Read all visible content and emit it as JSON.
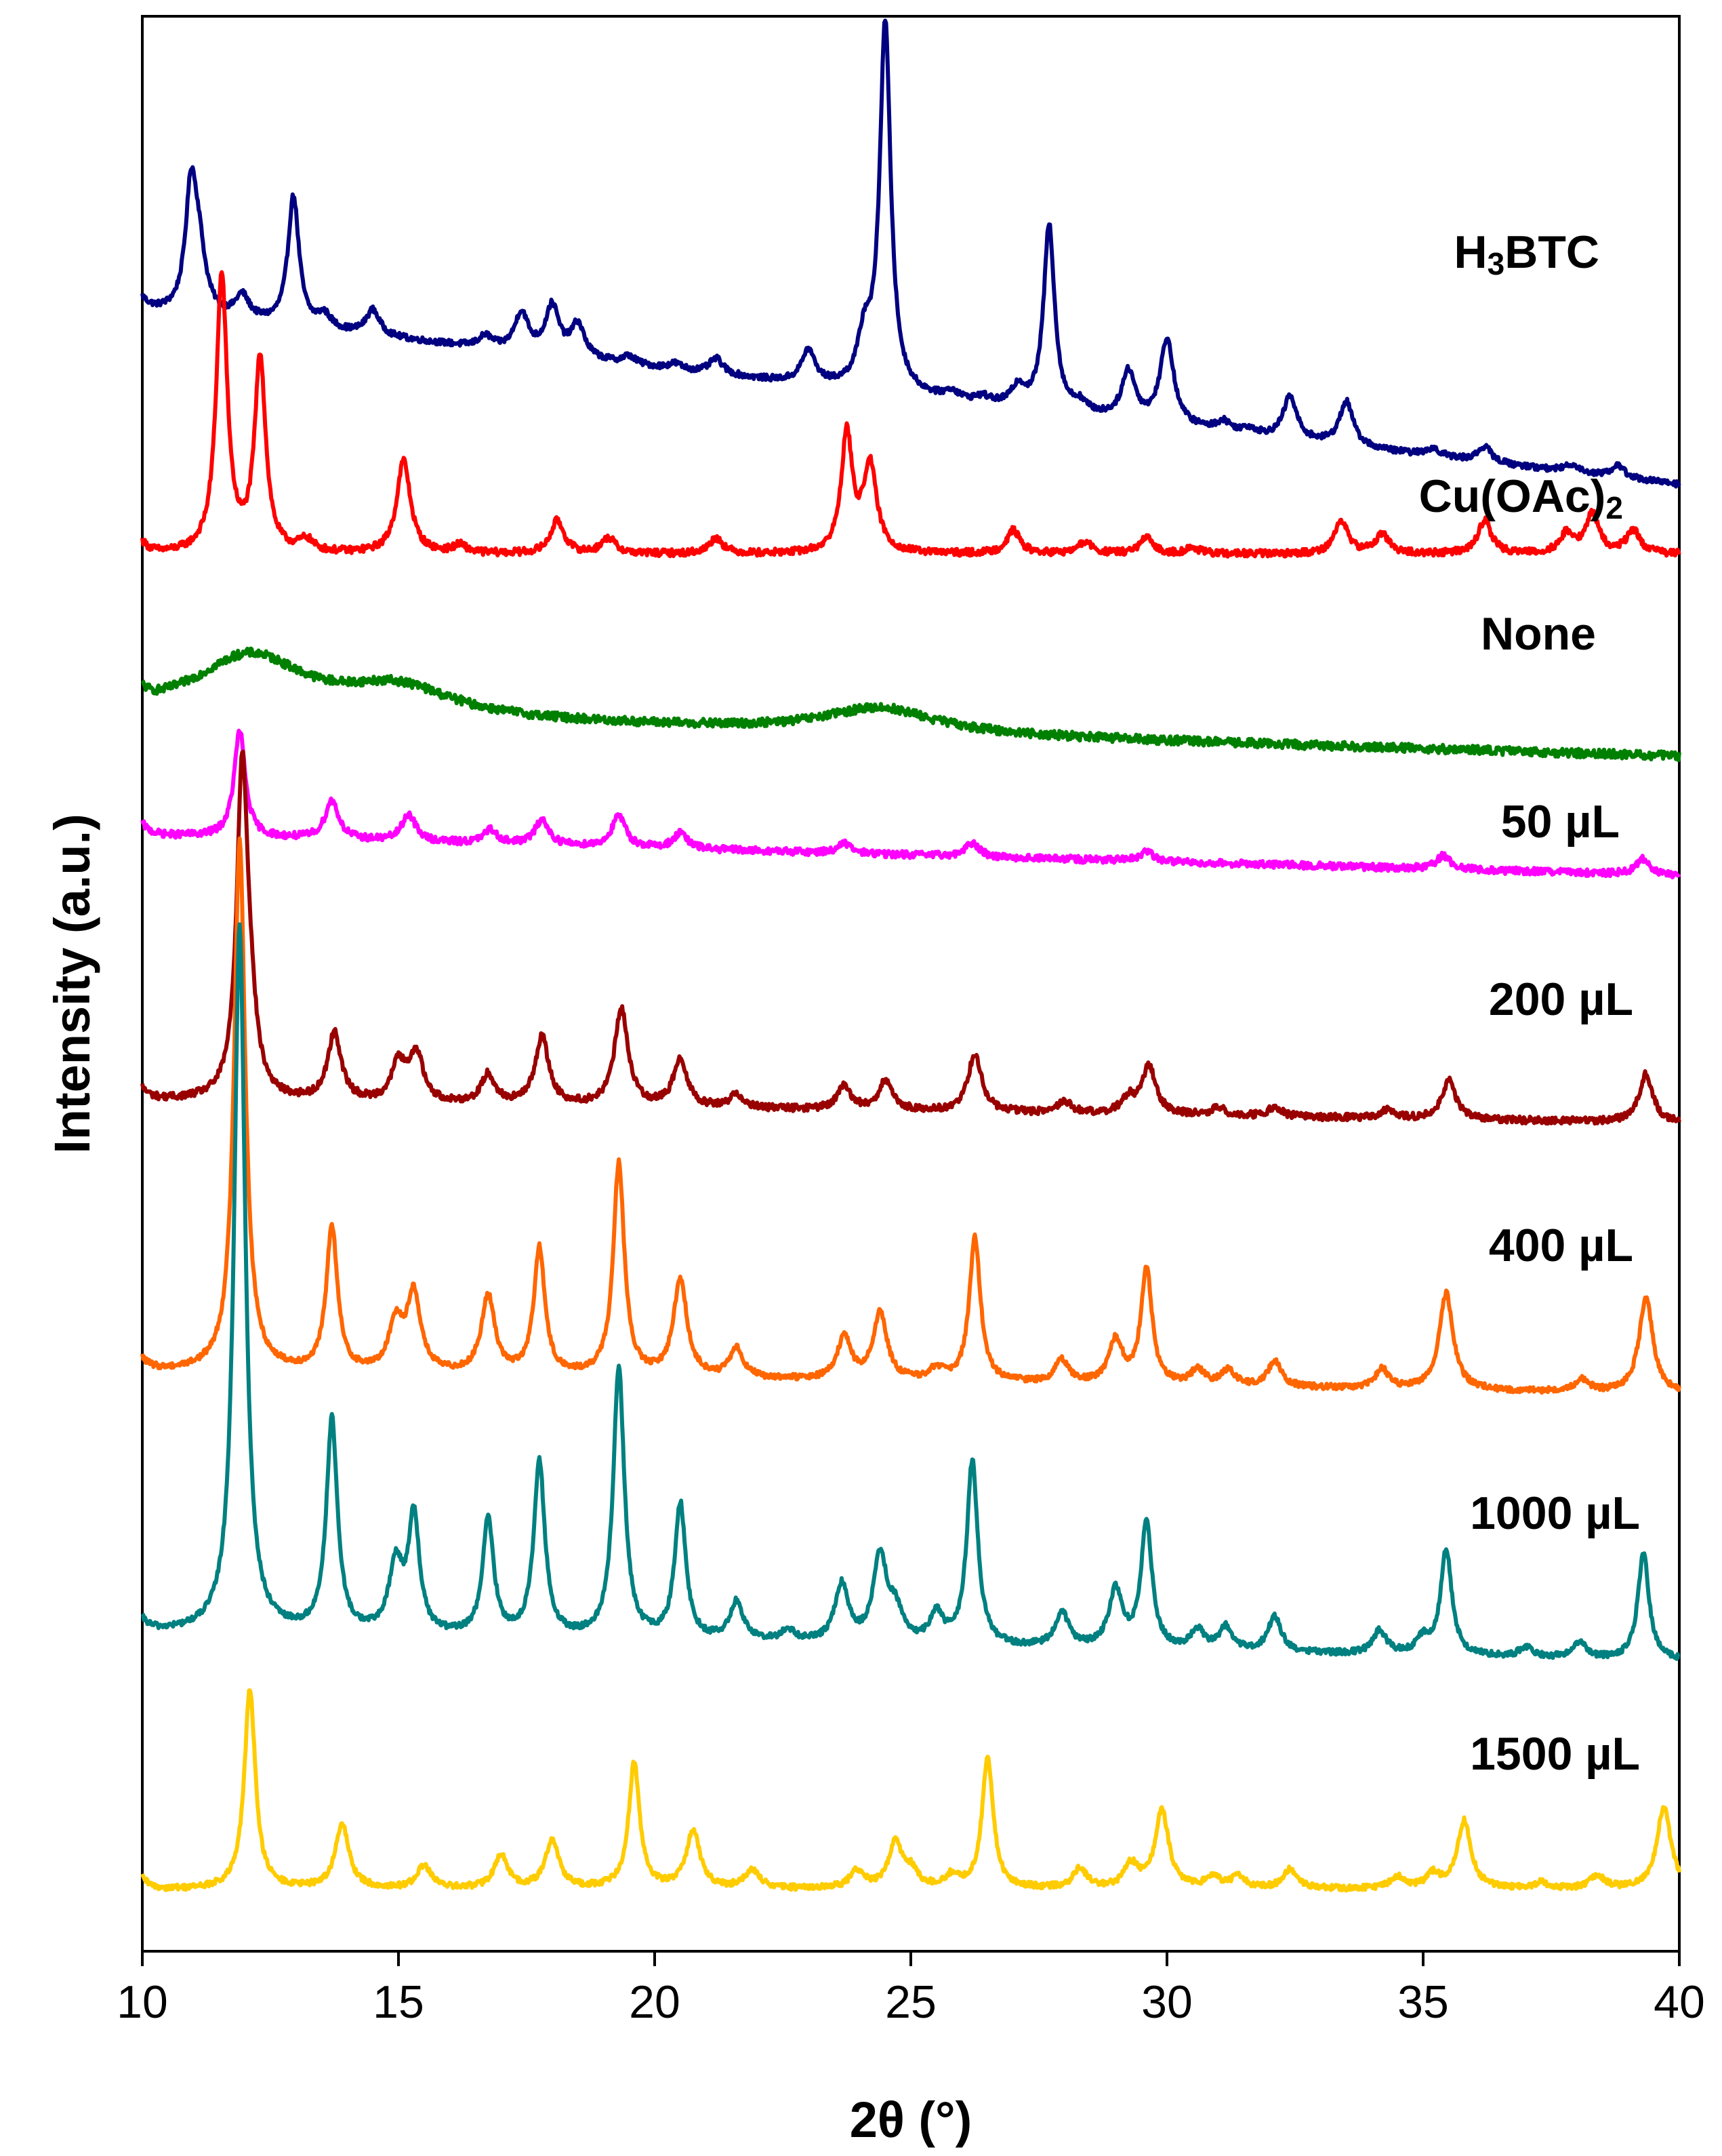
{
  "chart_data": {
    "type": "line",
    "title": "",
    "xlabel": "2θ (°)",
    "ylabel": "Intensity (a.u.)",
    "xlim": [
      10,
      40
    ],
    "xticks": [
      "10",
      "15",
      "20",
      "25",
      "30",
      "35",
      "40"
    ],
    "yticks_shown": false,
    "offset_stacked": true,
    "series": [
      {
        "name": "H3BTC",
        "label_main": "H",
        "label_sub": "3",
        "label_rest": "BTC",
        "color": "#000080",
        "baseline": 0.848,
        "slope": -0.003,
        "noise": 0.0015,
        "peaks": [
          [
            10.95,
            0.06
          ],
          [
            11.1,
            0.03
          ],
          [
            11.95,
            0.012
          ],
          [
            12.95,
            0.067
          ],
          [
            13.55,
            0.007
          ],
          [
            14.5,
            0.013
          ],
          [
            16.7,
            0.006
          ],
          [
            17.4,
            0.02
          ],
          [
            18.0,
            0.025
          ],
          [
            18.5,
            0.017
          ],
          [
            19.5,
            0.004
          ],
          [
            20.4,
            0.003
          ],
          [
            21.2,
            0.008
          ],
          [
            23.0,
            0.017
          ],
          [
            24.1,
            0.025
          ],
          [
            24.5,
            0.19
          ],
          [
            25.8,
            0.004
          ],
          [
            26.4,
            0.003
          ],
          [
            27.1,
            0.01
          ],
          [
            27.7,
            0.096
          ],
          [
            28.3,
            0.005
          ],
          [
            29.25,
            0.025
          ],
          [
            30.0,
            0.044
          ],
          [
            31.1,
            0.005
          ],
          [
            31.6,
            0.003
          ],
          [
            32.4,
            0.022
          ],
          [
            33.5,
            0.023
          ],
          [
            35.2,
            0.004
          ],
          [
            36.2,
            0.008
          ],
          [
            37.9,
            0.004
          ],
          [
            38.8,
            0.006
          ]
        ]
      },
      {
        "name": "Cu(OAc)2",
        "label_main": "Cu(OAc)",
        "label_sub": "2",
        "label_rest": "",
        "color": "#ff0000",
        "baseline": 0.722,
        "slope": 0.0,
        "noise": 0.0018,
        "peaks": [
          [
            11.55,
            0.143
          ],
          [
            12.3,
            0.1
          ],
          [
            13.2,
            0.006
          ],
          [
            15.1,
            0.048
          ],
          [
            16.2,
            0.004
          ],
          [
            18.1,
            0.017
          ],
          [
            19.1,
            0.008
          ],
          [
            21.2,
            0.008
          ],
          [
            23.75,
            0.061
          ],
          [
            24.2,
            0.045
          ],
          [
            27.0,
            0.012
          ],
          [
            28.4,
            0.006
          ],
          [
            29.6,
            0.008
          ],
          [
            30.5,
            0.003
          ],
          [
            33.4,
            0.017
          ],
          [
            34.2,
            0.01
          ],
          [
            36.2,
            0.017
          ],
          [
            37.8,
            0.01
          ],
          [
            38.3,
            0.02
          ],
          [
            39.1,
            0.012
          ]
        ]
      },
      {
        "name": "None",
        "label_main": "None",
        "label_sub": "",
        "label_rest": "",
        "color": "#008000",
        "baseline": 0.64,
        "slope": -0.00075,
        "noise": 0.0022,
        "peaks": [
          [
            12.1,
            0.03
          ],
          [
            15.0,
            0.015
          ],
          [
            24.4,
            0.013
          ]
        ],
        "broad": true
      },
      {
        "name": "50 µL",
        "label_main": "50 µL",
        "label_sub": "",
        "label_rest": "",
        "color": "#ff00ff",
        "baseline": 0.577,
        "slope": -0.0007,
        "noise": 0.0018,
        "peaks": [
          [
            11.9,
            0.055
          ],
          [
            13.7,
            0.02
          ],
          [
            15.2,
            0.014
          ],
          [
            16.8,
            0.007
          ],
          [
            17.8,
            0.013
          ],
          [
            19.3,
            0.016
          ],
          [
            20.5,
            0.008
          ],
          [
            23.7,
            0.005
          ],
          [
            26.2,
            0.007
          ],
          [
            29.6,
            0.005
          ],
          [
            35.4,
            0.007
          ],
          [
            39.3,
            0.008
          ]
        ]
      },
      {
        "name": "200 µL",
        "label_main": "200 µL",
        "label_sub": "",
        "label_rest": "",
        "color": "#990000",
        "baseline": 0.44,
        "slope": -0.0004,
        "noise": 0.0018,
        "peaks": [
          [
            11.95,
            0.165
          ],
          [
            12.1,
            0.03
          ],
          [
            13.75,
            0.035
          ],
          [
            15.0,
            0.02
          ],
          [
            15.35,
            0.025
          ],
          [
            16.75,
            0.015
          ],
          [
            17.8,
            0.035
          ],
          [
            19.35,
            0.05
          ],
          [
            20.5,
            0.025
          ],
          [
            21.6,
            0.007
          ],
          [
            23.7,
            0.012
          ],
          [
            24.5,
            0.015
          ],
          [
            26.25,
            0.03
          ],
          [
            28.0,
            0.006
          ],
          [
            29.25,
            0.008
          ],
          [
            29.65,
            0.025
          ],
          [
            31.0,
            0.004
          ],
          [
            32.1,
            0.005
          ],
          [
            34.3,
            0.004
          ],
          [
            35.5,
            0.02
          ],
          [
            39.35,
            0.025
          ]
        ]
      },
      {
        "name": "400 µL",
        "label_main": "400 µL",
        "label_sub": "",
        "label_rest": "",
        "color": "#ff6600",
        "baseline": 0.3,
        "slope": -0.0004,
        "noise": 0.0015,
        "peaks": [
          [
            11.9,
            0.275
          ],
          [
            13.7,
            0.075
          ],
          [
            14.95,
            0.025
          ],
          [
            15.3,
            0.04
          ],
          [
            16.75,
            0.04
          ],
          [
            17.75,
            0.065
          ],
          [
            19.3,
            0.11
          ],
          [
            20.5,
            0.05
          ],
          [
            21.6,
            0.015
          ],
          [
            23.7,
            0.022
          ],
          [
            24.4,
            0.035
          ],
          [
            25.5,
            0.006
          ],
          [
            26.25,
            0.075
          ],
          [
            27.95,
            0.012
          ],
          [
            29.0,
            0.022
          ],
          [
            29.6,
            0.06
          ],
          [
            30.6,
            0.008
          ],
          [
            31.2,
            0.008
          ],
          [
            32.1,
            0.013
          ],
          [
            34.2,
            0.01
          ],
          [
            35.45,
            0.05
          ],
          [
            38.1,
            0.006
          ],
          [
            39.35,
            0.05
          ]
        ]
      },
      {
        "name": "1000 µL",
        "label_main": "1000 µL",
        "label_sub": "",
        "label_rest": "",
        "color": "#008080",
        "baseline": 0.165,
        "slope": -0.0005,
        "noise": 0.0015,
        "peaks": [
          [
            11.9,
            0.365
          ],
          [
            13.7,
            0.11
          ],
          [
            14.95,
            0.035
          ],
          [
            15.3,
            0.06
          ],
          [
            16.75,
            0.06
          ],
          [
            17.75,
            0.09
          ],
          [
            19.3,
            0.14
          ],
          [
            20.5,
            0.07
          ],
          [
            21.6,
            0.02
          ],
          [
            22.6,
            0.006
          ],
          [
            23.65,
            0.03
          ],
          [
            24.4,
            0.045
          ],
          [
            24.7,
            0.015
          ],
          [
            25.5,
            0.015
          ],
          [
            26.2,
            0.095
          ],
          [
            27.95,
            0.018
          ],
          [
            29.0,
            0.03
          ],
          [
            29.6,
            0.065
          ],
          [
            30.6,
            0.01
          ],
          [
            31.15,
            0.012
          ],
          [
            32.1,
            0.018
          ],
          [
            34.15,
            0.012
          ],
          [
            35.0,
            0.008
          ],
          [
            35.45,
            0.055
          ],
          [
            37.0,
            0.005
          ],
          [
            38.05,
            0.008
          ],
          [
            39.3,
            0.055
          ]
        ]
      },
      {
        "name": "1500 µL",
        "label_main": "1500 µL",
        "label_sub": "",
        "label_rest": "",
        "color": "#ffcc00",
        "baseline": 0.032,
        "slope": 0.0,
        "noise": 0.0015,
        "peaks": [
          [
            12.1,
            0.103
          ],
          [
            13.9,
            0.033
          ],
          [
            15.5,
            0.012
          ],
          [
            17.0,
            0.017
          ],
          [
            18.0,
            0.025
          ],
          [
            19.6,
            0.065
          ],
          [
            20.75,
            0.03
          ],
          [
            21.9,
            0.01
          ],
          [
            23.95,
            0.009
          ],
          [
            24.7,
            0.023
          ],
          [
            25.0,
            0.008
          ],
          [
            25.8,
            0.006
          ],
          [
            26.5,
            0.068
          ],
          [
            28.3,
            0.01
          ],
          [
            29.3,
            0.012
          ],
          [
            29.9,
            0.04
          ],
          [
            30.9,
            0.006
          ],
          [
            31.4,
            0.006
          ],
          [
            32.4,
            0.01
          ],
          [
            34.5,
            0.006
          ],
          [
            35.2,
            0.007
          ],
          [
            35.8,
            0.035
          ],
          [
            37.3,
            0.003
          ],
          [
            38.4,
            0.007
          ],
          [
            39.7,
            0.043
          ]
        ]
      }
    ]
  }
}
